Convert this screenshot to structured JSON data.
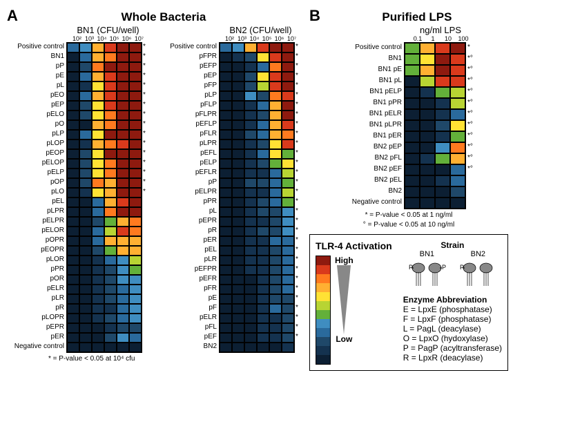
{
  "palette": [
    "#0c1f33",
    "#14324f",
    "#1f4869",
    "#2a6a9c",
    "#3f8dc0",
    "#63b03a",
    "#b8d433",
    "#ffe234",
    "#ffb032",
    "#ff7a1f",
    "#d93a1c",
    "#8e1a0f"
  ],
  "panelA": {
    "label": "A",
    "title": "Whole Bacteria",
    "footnote": "* = P-value < 0.05 at 10⁴ cfu",
    "bn1": {
      "subtitle": "BN1 (CFU/well)",
      "cols": [
        "10²",
        "10³",
        "10⁴",
        "10⁵",
        "10⁶",
        "10⁷"
      ],
      "rows": [
        {
          "label": "Positive control",
          "v": [
            3,
            4,
            8,
            10,
            11,
            11
          ],
          "star": ""
        },
        {
          "label": "BN1",
          "v": [
            0,
            3,
            8,
            9,
            11,
            11
          ],
          "star": ""
        },
        {
          "label": "pP",
          "v": [
            0,
            2,
            9,
            11,
            11,
            11
          ],
          "star": ""
        },
        {
          "label": "pE",
          "v": [
            0,
            3,
            8,
            10,
            11,
            11
          ],
          "star": ""
        },
        {
          "label": "pL",
          "v": [
            0,
            1,
            7,
            10,
            11,
            11
          ],
          "star": ""
        },
        {
          "label": "pEO",
          "v": [
            0,
            3,
            8,
            10,
            11,
            11
          ],
          "star": ""
        },
        {
          "label": "pEP",
          "v": [
            0,
            2,
            7,
            10,
            11,
            11
          ],
          "star": ""
        },
        {
          "label": "pELO",
          "v": [
            0,
            2,
            7,
            9,
            11,
            11
          ],
          "star": ""
        },
        {
          "label": "pO",
          "v": [
            0,
            0,
            8,
            9,
            11,
            11
          ],
          "star": ""
        },
        {
          "label": "pLP",
          "v": [
            0,
            3,
            7,
            11,
            11,
            11
          ],
          "star": ""
        },
        {
          "label": "pLOP",
          "v": [
            0,
            1,
            8,
            9,
            10,
            11
          ],
          "star": ""
        },
        {
          "label": "pEOP",
          "v": [
            0,
            2,
            7,
            11,
            11,
            11
          ],
          "star": ""
        },
        {
          "label": "pELOP",
          "v": [
            0,
            2,
            7,
            9,
            11,
            11
          ],
          "star": ""
        },
        {
          "label": "pELP",
          "v": [
            0,
            2,
            7,
            9,
            11,
            11
          ],
          "star": ""
        },
        {
          "label": "pOP",
          "v": [
            0,
            2,
            9,
            8,
            11,
            11
          ],
          "star": ""
        },
        {
          "label": "pLO",
          "v": [
            0,
            1,
            7,
            8,
            11,
            11
          ],
          "star": ""
        },
        {
          "label": "pEL",
          "v": [
            0,
            0,
            3,
            8,
            10,
            11
          ],
          "star": "*"
        },
        {
          "label": "pLPR",
          "v": [
            0,
            0,
            3,
            9,
            11,
            11
          ],
          "star": "*"
        },
        {
          "label": "pELPR",
          "v": [
            0,
            0,
            2,
            5,
            8,
            9
          ],
          "star": "*"
        },
        {
          "label": "pELOR",
          "v": [
            0,
            0,
            3,
            6,
            10,
            9
          ],
          "star": "*"
        },
        {
          "label": "pOPR",
          "v": [
            0,
            0,
            3,
            8,
            8,
            8
          ],
          "star": "*"
        },
        {
          "label": "pEOPR",
          "v": [
            0,
            0,
            2,
            5,
            8,
            8
          ],
          "star": "*"
        },
        {
          "label": "pLOR",
          "v": [
            0,
            0,
            1,
            3,
            4,
            6
          ],
          "star": "*"
        },
        {
          "label": "pPR",
          "v": [
            0,
            0,
            1,
            2,
            4,
            5
          ],
          "star": "*"
        },
        {
          "label": "pOR",
          "v": [
            0,
            0,
            1,
            2,
            4,
            4
          ],
          "star": "*"
        },
        {
          "label": "pELR",
          "v": [
            0,
            0,
            1,
            2,
            3,
            4
          ],
          "star": "*"
        },
        {
          "label": "pLR",
          "v": [
            0,
            0,
            1,
            2,
            3,
            4
          ],
          "star": "*"
        },
        {
          "label": "pR",
          "v": [
            0,
            0,
            1,
            1,
            3,
            4
          ],
          "star": "*"
        },
        {
          "label": "pLOPR",
          "v": [
            0,
            0,
            1,
            2,
            3,
            4
          ],
          "star": "*"
        },
        {
          "label": "pEPR",
          "v": [
            0,
            0,
            0,
            1,
            2,
            2
          ],
          "star": "*"
        },
        {
          "label": "pER",
          "v": [
            0,
            0,
            0,
            2,
            4,
            3
          ],
          "star": "*"
        },
        {
          "label": "Negative control",
          "v": [
            0,
            0,
            0,
            0,
            0,
            0
          ],
          "star": "*"
        }
      ]
    },
    "bn2": {
      "subtitle": "BN2 (CFU/well)",
      "cols": [
        "10²",
        "10³",
        "10⁴",
        "10⁵",
        "10⁶",
        "10⁷"
      ],
      "rows": [
        {
          "label": "Positive control",
          "v": [
            3,
            4,
            8,
            10,
            11,
            11
          ],
          "star": ""
        },
        {
          "label": "pFPR",
          "v": [
            0,
            1,
            2,
            7,
            10,
            11
          ],
          "star": "*"
        },
        {
          "label": "pEFP",
          "v": [
            0,
            0,
            1,
            3,
            9,
            11
          ],
          "star": "*"
        },
        {
          "label": "pEP",
          "v": [
            0,
            0,
            2,
            7,
            10,
            11
          ],
          "star": "*"
        },
        {
          "label": "pFP",
          "v": [
            0,
            0,
            2,
            6,
            10,
            11
          ],
          "star": "*"
        },
        {
          "label": "pLP",
          "v": [
            0,
            0,
            4,
            2,
            9,
            10
          ],
          "star": "*"
        },
        {
          "label": "pFLP",
          "v": [
            0,
            0,
            1,
            3,
            8,
            11
          ],
          "star": "*"
        },
        {
          "label": "pFLPR",
          "v": [
            0,
            0,
            1,
            2,
            8,
            11
          ],
          "star": "*"
        },
        {
          "label": "pEFLP",
          "v": [
            0,
            0,
            1,
            3,
            8,
            10
          ],
          "star": "*"
        },
        {
          "label": "pFLR",
          "v": [
            0,
            0,
            2,
            3,
            8,
            9
          ],
          "star": "*"
        },
        {
          "label": "pLPR",
          "v": [
            0,
            0,
            1,
            2,
            7,
            10
          ],
          "star": "*"
        },
        {
          "label": "pEFL",
          "v": [
            0,
            0,
            1,
            3,
            7,
            5
          ],
          "star": "*"
        },
        {
          "label": "pELP",
          "v": [
            0,
            0,
            1,
            2,
            5,
            7
          ],
          "star": "*"
        },
        {
          "label": "pEFLR",
          "v": [
            0,
            0,
            1,
            1,
            3,
            6
          ],
          "star": "*"
        },
        {
          "label": "pP",
          "v": [
            0,
            0,
            2,
            2,
            3,
            5
          ],
          "star": "*"
        },
        {
          "label": "pELPR",
          "v": [
            0,
            0,
            1,
            1,
            3,
            6
          ],
          "star": "*"
        },
        {
          "label": "pPR",
          "v": [
            0,
            0,
            1,
            2,
            3,
            5
          ],
          "star": "*"
        },
        {
          "label": "pL",
          "v": [
            0,
            0,
            1,
            2,
            2,
            4
          ],
          "star": "*"
        },
        {
          "label": "pEPR",
          "v": [
            0,
            0,
            1,
            1,
            2,
            4
          ],
          "star": "*"
        },
        {
          "label": "pR",
          "v": [
            0,
            0,
            1,
            2,
            2,
            4
          ],
          "star": "*"
        },
        {
          "label": "pER",
          "v": [
            0,
            0,
            1,
            1,
            3,
            3
          ],
          "star": "*"
        },
        {
          "label": "pEL",
          "v": [
            0,
            0,
            1,
            1,
            2,
            3
          ],
          "star": "*"
        },
        {
          "label": "pLR",
          "v": [
            0,
            0,
            1,
            1,
            2,
            3
          ],
          "star": "*"
        },
        {
          "label": "pEFPR",
          "v": [
            0,
            0,
            1,
            1,
            2,
            3
          ],
          "star": "*"
        },
        {
          "label": "pEFR",
          "v": [
            0,
            0,
            0,
            1,
            2,
            3
          ],
          "star": "*"
        },
        {
          "label": "pFR",
          "v": [
            0,
            0,
            0,
            1,
            2,
            3
          ],
          "star": "*"
        },
        {
          "label": "pE",
          "v": [
            0,
            0,
            0,
            1,
            2,
            2
          ],
          "star": "*"
        },
        {
          "label": "pF",
          "v": [
            0,
            0,
            0,
            1,
            3,
            2
          ],
          "star": "*"
        },
        {
          "label": "pELR",
          "v": [
            0,
            0,
            0,
            1,
            1,
            2
          ],
          "star": "*"
        },
        {
          "label": "pFL",
          "v": [
            0,
            0,
            0,
            1,
            1,
            2
          ],
          "star": "*"
        },
        {
          "label": "pEF",
          "v": [
            0,
            0,
            0,
            1,
            1,
            2
          ],
          "star": "*"
        },
        {
          "label": "BN2",
          "v": [
            0,
            0,
            0,
            0,
            0,
            1
          ],
          "star": "*"
        }
      ]
    }
  },
  "panelB": {
    "label": "B",
    "title": "Purified LPS",
    "subtitle": "ng/ml LPS",
    "cols": [
      "0.1",
      "1",
      "10",
      "100"
    ],
    "footnote1": "* = P-value < 0.05 at 1 ng/ml",
    "footnote2": "° = P-value < 0.05 at 10 ng/ml",
    "rows": [
      {
        "label": "Positive control",
        "v": [
          5,
          8,
          10,
          11
        ],
        "star": ""
      },
      {
        "label": "BN1",
        "v": [
          5,
          7,
          11,
          10
        ],
        "star": ""
      },
      {
        "label": "BN1 pE",
        "v": [
          5,
          8,
          11,
          10
        ],
        "star": ""
      },
      {
        "label": "BN1 pL",
        "v": [
          0,
          6,
          10,
          10
        ],
        "star": "*"
      },
      {
        "label": "BN1 pELP",
        "v": [
          0,
          1,
          5,
          6
        ],
        "star": "*°"
      },
      {
        "label": "BN1 pPR",
        "v": [
          0,
          0,
          1,
          6
        ],
        "star": "*°"
      },
      {
        "label": "BN1 pELR",
        "v": [
          0,
          0,
          1,
          3
        ],
        "star": "*°"
      },
      {
        "label": "BN1 pLPR",
        "v": [
          0,
          0,
          2,
          7
        ],
        "star": "*°"
      },
      {
        "label": "BN1 pER",
        "v": [
          0,
          0,
          1,
          5
        ],
        "star": "*°"
      },
      {
        "label": "BN2 pEP",
        "v": [
          0,
          0,
          4,
          9
        ],
        "star": "*°"
      },
      {
        "label": "BN2 pFL",
        "v": [
          0,
          1,
          5,
          8
        ],
        "star": "*°"
      },
      {
        "label": "BN2 pEF",
        "v": [
          0,
          0,
          0,
          3
        ],
        "star": "*°"
      },
      {
        "label": "BN2 pEL",
        "v": [
          0,
          0,
          1,
          3
        ],
        "star": "*°"
      },
      {
        "label": "BN2",
        "v": [
          0,
          0,
          0,
          2
        ],
        "star": "*°"
      },
      {
        "label": "Negative control",
        "v": [
          0,
          0,
          0,
          0
        ],
        "star": "*°"
      }
    ]
  },
  "legend": {
    "tlr4": "TLR-4 Activation",
    "high": "High",
    "low": "Low",
    "strain_title": "Strain",
    "strains": [
      "BN1",
      "BN2"
    ],
    "enzyme_title": "Enzyme Abbreviation",
    "enzymes": [
      "E = LpxE (phosphatase)",
      "F = LpxF (phosphatase)",
      "L = PagL (deacylase)",
      "O = LpxO (hydoxylase)",
      "P = PagP (acyltransferase)",
      "R = LpxR (deacylase)"
    ]
  }
}
